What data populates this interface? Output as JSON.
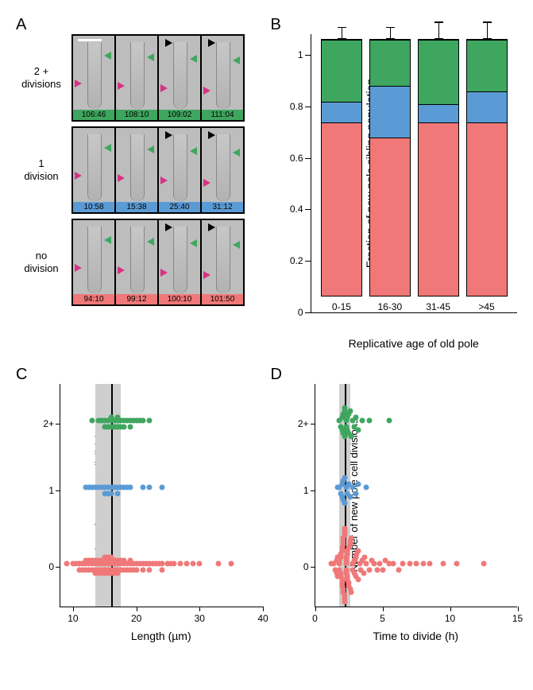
{
  "colors": {
    "green": "#3fa65f",
    "blue": "#5b9bd5",
    "red": "#f07878",
    "magenta": "#d63384",
    "black": "#000000",
    "grey_band": "#cfcfcf"
  },
  "panelA": {
    "label": "A",
    "rows": [
      {
        "label": "2 +\ndivisions",
        "color_key": "green",
        "timestamps": [
          "106:46",
          "108:10",
          "109:02",
          "111:04"
        ],
        "scalebar": true
      },
      {
        "label": "1\ndivision",
        "color_key": "blue",
        "timestamps": [
          "10:58",
          "15:38",
          "25:40",
          "31:12"
        ],
        "scalebar": false
      },
      {
        "label": "no\ndivision",
        "color_key": "red",
        "timestamps": [
          "94:10",
          "99:12",
          "100:10",
          "101:50"
        ],
        "scalebar": false
      }
    ]
  },
  "panelB": {
    "label": "B",
    "ylabel": "Fraction of new pole sibling population",
    "xlabel": "Replicative age of old pole",
    "ylim": [
      0,
      1
    ],
    "ytick_step": 0.2,
    "overshoot": 0.08,
    "categories": [
      "0-15",
      "16-30",
      "31-45",
      ">45"
    ],
    "series_colors": [
      "red",
      "blue",
      "green"
    ],
    "stacks": [
      {
        "red": 0.68,
        "blue": 0.08,
        "green": 0.24,
        "err_red": 0.02,
        "err_blue": 0.04,
        "err_green": 0.05
      },
      {
        "red": 0.62,
        "blue": 0.2,
        "green": 0.18,
        "err_red": 0.06,
        "err_blue": 0.04,
        "err_green": 0.05
      },
      {
        "red": 0.68,
        "blue": 0.07,
        "green": 0.25,
        "err_red": 0.07,
        "err_blue": 0.12,
        "err_green": 0.07
      },
      {
        "red": 0.68,
        "blue": 0.12,
        "green": 0.2,
        "err_red": 0.1,
        "err_blue": 0.06,
        "err_green": 0.07
      }
    ]
  },
  "panelC": {
    "label": "C",
    "ylabel": "Number of new pole cell divisions",
    "xlabel": "Length (µm)",
    "xlim": [
      8,
      40
    ],
    "xticks": [
      10,
      20,
      30,
      40
    ],
    "ylevels": [
      "0",
      "1",
      "2+"
    ],
    "vband": {
      "min": 13.5,
      "max": 17.5
    },
    "vline": 16,
    "points": {
      "green_y": 2,
      "blue_y": 1,
      "red_y": 0,
      "green_x": [
        13,
        14,
        14.5,
        15,
        15,
        15.5,
        15.5,
        16,
        16,
        16,
        16.5,
        16.5,
        17,
        17,
        17,
        17.5,
        17.5,
        18,
        18,
        18.5,
        19,
        19,
        19.5,
        20,
        20.5,
        21,
        22
      ],
      "blue_x": [
        12,
        12.5,
        13,
        13.5,
        14,
        14.5,
        15,
        15,
        15.5,
        15.5,
        16,
        16,
        16.5,
        17,
        17,
        17.5,
        18,
        18.5,
        19,
        21,
        22,
        24
      ],
      "red_x": [
        9,
        10,
        10.5,
        11,
        11,
        11.5,
        11.5,
        12,
        12,
        12,
        12.5,
        12.5,
        12.5,
        13,
        13,
        13,
        13.5,
        13.5,
        13.5,
        13.5,
        14,
        14,
        14,
        14,
        14.5,
        14.5,
        14.5,
        14.5,
        15,
        15,
        15,
        15,
        15,
        15.5,
        15.5,
        15.5,
        15.5,
        15.5,
        16,
        16,
        16,
        16,
        16,
        16.5,
        16.5,
        16.5,
        16.5,
        17,
        17,
        17,
        17,
        17.5,
        17.5,
        17.5,
        18,
        18,
        18,
        18.5,
        18.5,
        19,
        19,
        19,
        19.5,
        19.5,
        20,
        20,
        20.5,
        21,
        21,
        21.5,
        22,
        22,
        22.5,
        23,
        23.5,
        24,
        24,
        25,
        25.5,
        26,
        27,
        28,
        29,
        30,
        33,
        35
      ]
    }
  },
  "panelD": {
    "label": "D",
    "ylabel": "Number of new pole cell divisions",
    "xlabel": "Time to divide (h)",
    "xlim": [
      0,
      15
    ],
    "xticks": [
      0,
      5,
      10,
      15
    ],
    "ylevels": [
      "0",
      "1",
      "2+"
    ],
    "vband": {
      "min": 1.8,
      "max": 2.6
    },
    "vline": 2.2,
    "points": {
      "green_y": 2,
      "blue_y": 1,
      "red_y": 0,
      "green_x": [
        1.8,
        1.9,
        2.0,
        2.0,
        2.1,
        2.1,
        2.2,
        2.2,
        2.2,
        2.3,
        2.3,
        2.4,
        2.4,
        2.5,
        2.5,
        2.6,
        2.7,
        2.8,
        2.9,
        3.0,
        3.2,
        3.5,
        4.0,
        5.5
      ],
      "blue_x": [
        1.7,
        1.8,
        1.9,
        2.0,
        2.0,
        2.1,
        2.1,
        2.2,
        2.2,
        2.3,
        2.4,
        2.5,
        2.6,
        2.8,
        3.0,
        3.2,
        3.8
      ],
      "red_x": [
        1.2,
        1.4,
        1.5,
        1.6,
        1.6,
        1.7,
        1.7,
        1.8,
        1.8,
        1.8,
        1.9,
        1.9,
        1.9,
        1.9,
        2.0,
        2.0,
        2.0,
        2.0,
        2.0,
        2.1,
        2.1,
        2.1,
        2.1,
        2.1,
        2.2,
        2.2,
        2.2,
        2.2,
        2.2,
        2.2,
        2.3,
        2.3,
        2.3,
        2.3,
        2.3,
        2.4,
        2.4,
        2.4,
        2.4,
        2.5,
        2.5,
        2.5,
        2.6,
        2.6,
        2.6,
        2.7,
        2.7,
        2.8,
        2.8,
        2.9,
        2.9,
        3.0,
        3.0,
        3.1,
        3.2,
        3.2,
        3.3,
        3.4,
        3.5,
        3.6,
        3.7,
        3.8,
        4.0,
        4.2,
        4.4,
        4.6,
        4.8,
        5.0,
        5.2,
        5.5,
        5.8,
        6.2,
        6.5,
        7.0,
        7.5,
        8.0,
        8.5,
        9.5,
        10.5,
        12.5
      ]
    }
  }
}
